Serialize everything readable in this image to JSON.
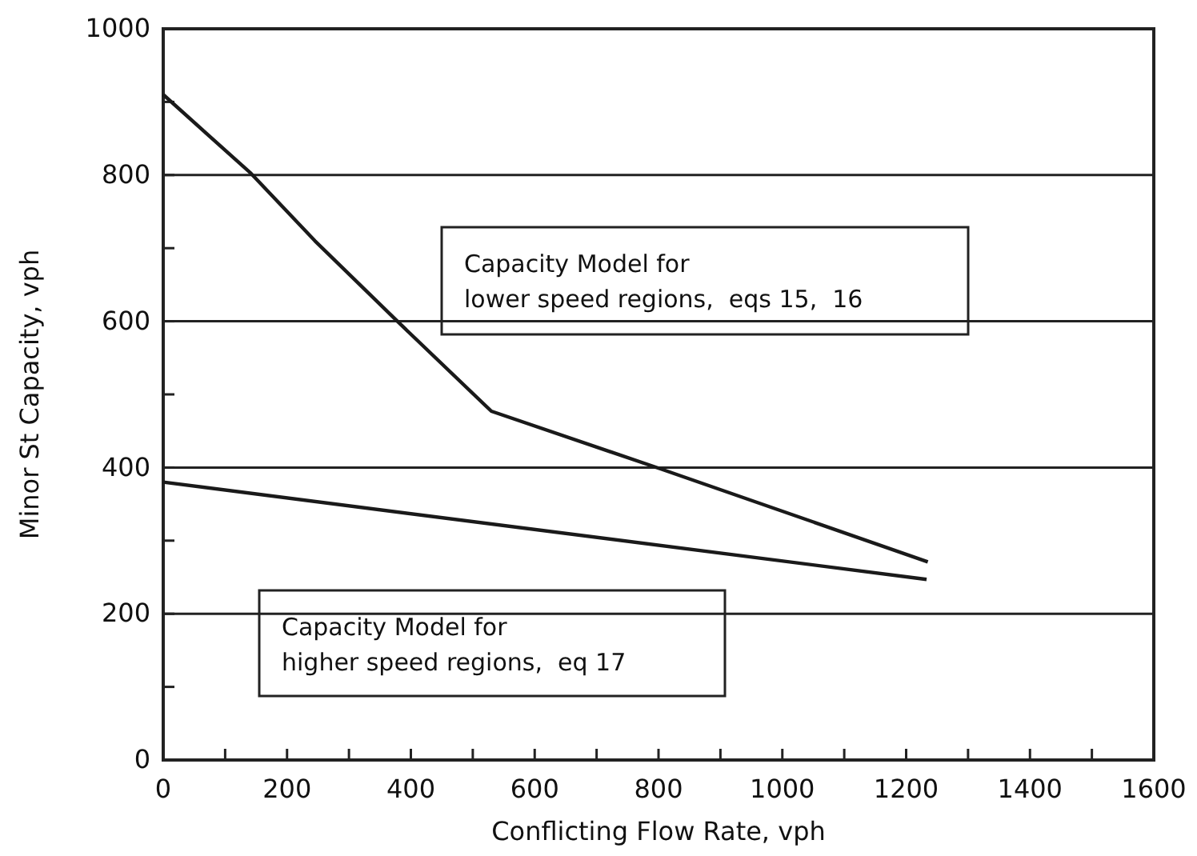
{
  "chart_data": {
    "type": "line",
    "xlabel": "Conflicting Flow Rate,  vph",
    "ylabel": "Minor St Capacity,  vph",
    "xlim": [
      0,
      1600
    ],
    "ylim": [
      0,
      1000
    ],
    "xticks": [
      0,
      {
        "value": 100,
        "label": null
      },
      200,
      {
        "value": 300,
        "label": null
      },
      400,
      {
        "value": 500,
        "label": null
      },
      600,
      {
        "value": 700,
        "label": null
      },
      800,
      {
        "value": 900,
        "label": null
      },
      1000,
      {
        "value": 1100,
        "label": null
      },
      1200,
      {
        "value": 1300,
        "label": null
      },
      1400,
      {
        "value": 1500,
        "label": null
      },
      1600
    ],
    "yticks": [
      0,
      {
        "value": 100,
        "label": null
      },
      200,
      {
        "value": 300,
        "label": null
      },
      400,
      {
        "value": 500,
        "label": null
      },
      600,
      {
        "value": 700,
        "label": null
      },
      800,
      {
        "value": 900,
        "label": null
      },
      1000
    ],
    "grid": "y",
    "marker": "none",
    "line_style": "solid",
    "series": [
      {
        "color": "#1a1a1a",
        "x": [
          0,
          142,
          245,
          377,
          530,
          804,
          1235
        ],
        "values": [
          910,
          802,
          710,
          601,
          477,
          398,
          271
        ]
      },
      {
        "color": "#1a1a1a",
        "x": [
          0,
          1233
        ],
        "values": [
          380,
          247
        ]
      }
    ],
    "annotations": [
      "Capacity Model for\nlower speed regions,  eqs 15,  16",
      "Capacity Model for\nhigher speed regions,  eq 17"
    ]
  }
}
